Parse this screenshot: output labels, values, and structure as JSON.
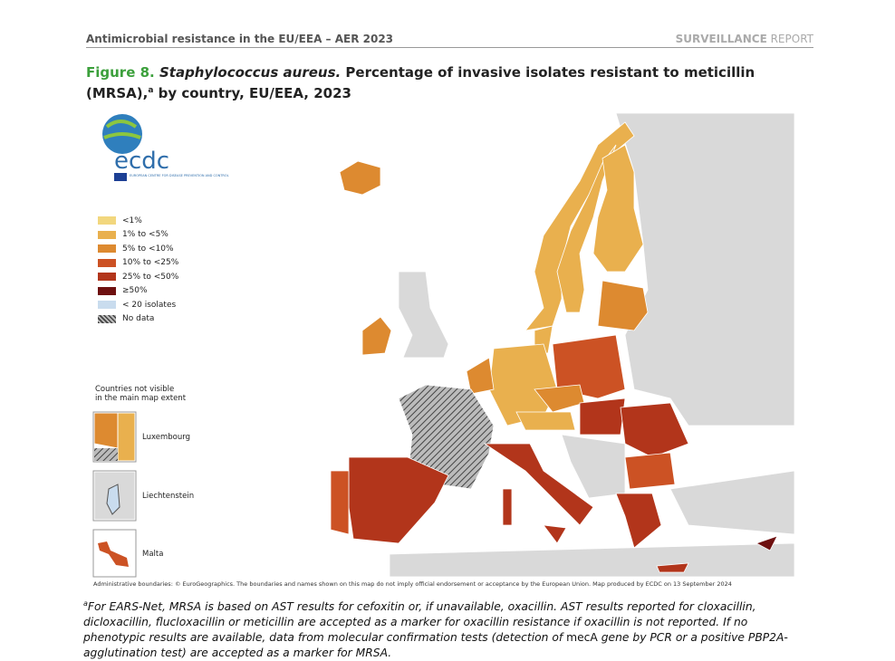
{
  "header": {
    "title": "Antimicrobial resistance in the EU/EEA – AER 2023",
    "report_bold": "SURVEILLANCE",
    "report_light": "REPORT"
  },
  "figure": {
    "label": "Figure 8.",
    "species": "Staphylococcus aureus.",
    "title": " Percentage of invasive isolates resistant to meticillin (MRSA),",
    "sup": "a",
    "title_end": " by country, EU/EEA, 2023"
  },
  "logo": {
    "text": "ecdc",
    "org": "EUROPEAN CENTRE FOR DISEASE PREVENTION AND CONTROL"
  },
  "legend": {
    "items": [
      {
        "label": "<1%",
        "color": "#f2d77e"
      },
      {
        "label": "1% to <5%",
        "color": "#e9b04e"
      },
      {
        "label": "5% to <10%",
        "color": "#dd8a30"
      },
      {
        "label": "10% to <25%",
        "color": "#cc5224"
      },
      {
        "label": "25% to <50%",
        "color": "#b2351b"
      },
      {
        "label": "≥50%",
        "color": "#6e1010"
      },
      {
        "label": "< 20 isolates",
        "color": "#c9dcee"
      },
      {
        "label": "No data",
        "color": "hatch"
      }
    ]
  },
  "insets": {
    "heading_1": "Countries not visible",
    "heading_2": "in the main map extent",
    "items": [
      "Luxembourg",
      "Liechtenstein",
      "Malta"
    ]
  },
  "admin_note": "Administrative boundaries: © EuroGeographics. The boundaries and names shown on this map do not imply official endorsement or acceptance by the European Union. Map produced by ECDC on 13 September 2024",
  "footnote": {
    "sup": "a",
    "part_1": "For EARS-Net, MRSA is based on AST results for cefoxitin or, if unavailable, oxacillin. AST results reported for cloxacillin, dicloxacillin, flucloxacillin or meticillin are accepted as a marker for oxacillin resistance if oxacillin is not reported. If no phenotypic results are available, data from molecular confirmation tests (detection of ",
    "gene": "mecA",
    "part_2": " gene by PCR or a positive PBP2A-agglutination test) are accepted as a marker for MRSA."
  }
}
